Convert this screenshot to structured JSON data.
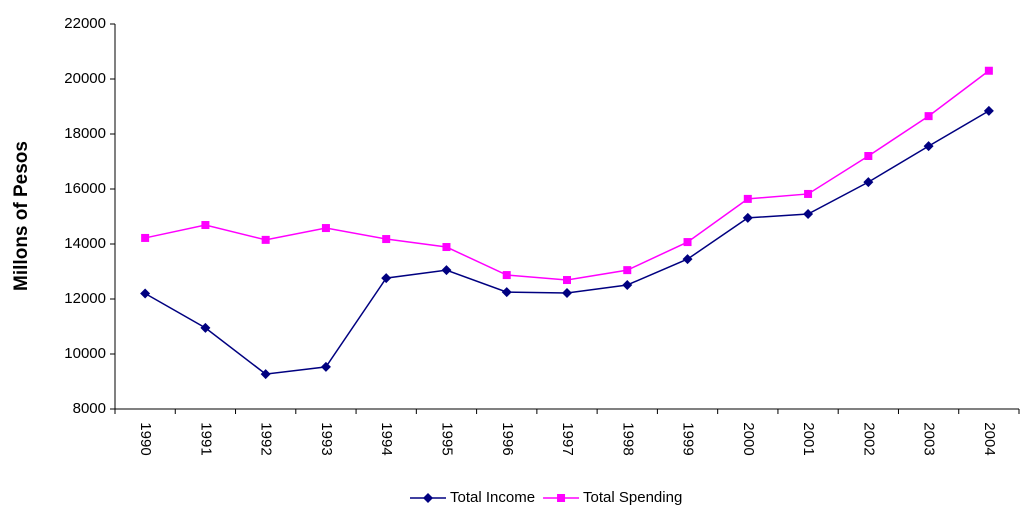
{
  "chart_data": {
    "type": "line",
    "y_label": "Millons of Pesos",
    "categories": [
      "1990",
      "1991",
      "1992",
      "1993",
      "1994",
      "1995",
      "1996",
      "1997",
      "1998",
      "1999",
      "2000",
      "2001",
      "2002",
      "2003",
      "2004"
    ],
    "series": [
      {
        "name": "Total Income",
        "color": "#000080",
        "marker": "diamond",
        "values": [
          12200,
          10950,
          9270,
          9530,
          12760,
          13050,
          12250,
          12220,
          12510,
          13450,
          14950,
          15090,
          16250,
          17560,
          18840
        ]
      },
      {
        "name": "Total Spending",
        "color": "#ff00ff",
        "marker": "square",
        "values": [
          14220,
          14690,
          14150,
          14580,
          14180,
          13890,
          12870,
          12690,
          13050,
          14070,
          15640,
          15820,
          17200,
          18650,
          20300
        ]
      }
    ],
    "ylim": [
      8000,
      22000
    ],
    "yticks": [
      8000,
      10000,
      12000,
      14000,
      16000,
      18000,
      20000,
      22000
    ],
    "grid": false,
    "legend": "bottom"
  }
}
